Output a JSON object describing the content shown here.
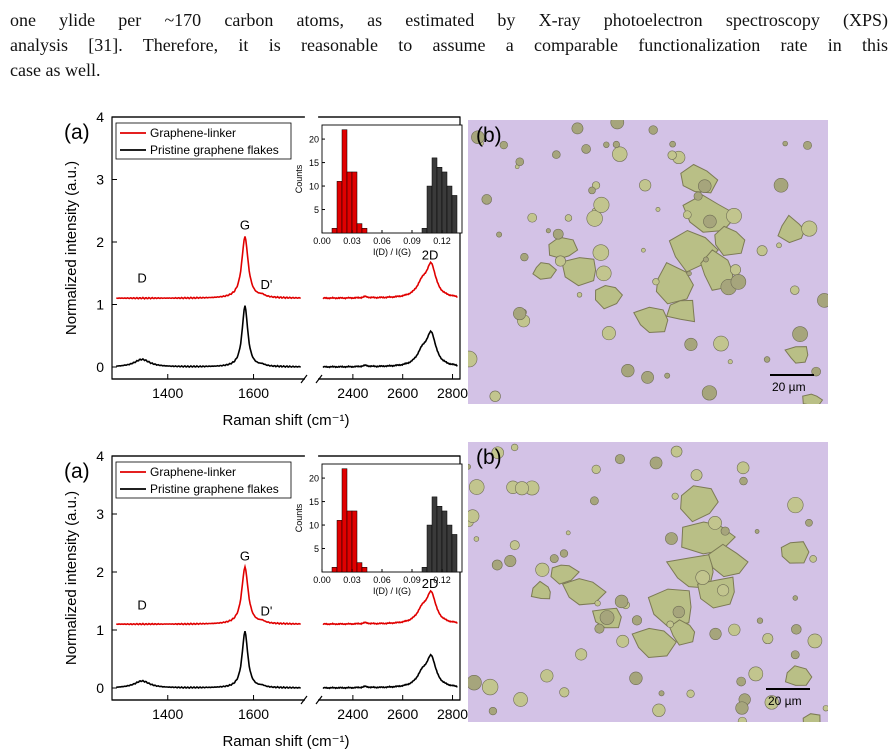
{
  "paragraph": {
    "lines": [
      "one ylide per ~170 carbon atoms, as estimated by X-ray photoelectron spectroscopy (XPS)",
      "analysis [31]. Therefore, it is reasonable to assume a comparable functionalization rate in this",
      "case as well."
    ]
  },
  "figures": [
    {
      "panel_a_label": "(a)",
      "panel_b_label": "(b)",
      "ylabel": "Normalized intensity (a.u.)",
      "xlabel": "Raman shift (cm⁻¹)",
      "legend": [
        "Graphene-linker",
        "Pristine graphene flakes"
      ],
      "peak_labels": {
        "D": "D",
        "G": "G",
        "Dp": "D'",
        "2D": "2D"
      },
      "yticks": [
        "0",
        "1",
        "2",
        "3",
        "4"
      ],
      "xticks_left": [
        "1400",
        "1600"
      ],
      "xticks_right": [
        "2400",
        "2600",
        "2800"
      ],
      "inset": {
        "ylabel": "Counts",
        "xlabel": "I(D) / I(G)",
        "yticks": [
          "5",
          "10",
          "15",
          "20"
        ],
        "xticks": [
          "0.00",
          "0.03",
          "0.06",
          "0.09",
          "0.12"
        ]
      },
      "scalebar": "20 µm"
    },
    {
      "panel_a_label": "(a)",
      "panel_b_label": "(b)",
      "ylabel": "Normalized intensity (a.u.)",
      "xlabel": "Raman shift (cm⁻¹)",
      "legend": [
        "Graphene-linker",
        "Pristine graphene flakes"
      ],
      "peak_labels": {
        "D": "D",
        "G": "G",
        "Dp": "D'",
        "2D": "2D"
      },
      "yticks": [
        "0",
        "1",
        "2",
        "3",
        "4"
      ],
      "xticks_left": [
        "1400",
        "1600"
      ],
      "xticks_right": [
        "2400",
        "2600",
        "2800"
      ],
      "inset": {
        "ylabel": "Counts",
        "xlabel": "I(D) / I(G)",
        "yticks": [
          "5",
          "10",
          "15",
          "20"
        ],
        "xticks": [
          "0.00",
          "0.03",
          "0.06",
          "0.09",
          "0.12"
        ]
      },
      "scalebar": "20 µm"
    }
  ],
  "chart_data": {
    "type": "line",
    "xlabel": "Raman shift (cm⁻¹)",
    "ylabel": "Normalized intensity (a.u.)",
    "ylim": [
      0,
      4
    ],
    "x_axis_break": [
      1700,
      2300
    ],
    "series": [
      {
        "name": "Graphene-linker",
        "color": "#e00000",
        "offset": 1.1,
        "peaks": {
          "D": [
            1340,
            0.0
          ],
          "G": [
            1580,
            1.0
          ],
          "D'": [
            1620,
            0.0
          ],
          "2D": [
            2700,
            0.47
          ]
        }
      },
      {
        "name": "Pristine graphene flakes",
        "color": "#000000",
        "offset": 0.0,
        "peaks": {
          "D": [
            1340,
            0.12
          ],
          "G": [
            1580,
            1.0
          ],
          "2D": [
            2700,
            0.47
          ]
        }
      }
    ],
    "inset_histograms": [
      {
        "series": "Graphene-linker",
        "color": "#e00000",
        "bin_width": 0.005,
        "bins": [
          0.0125,
          0.0175,
          0.0225,
          0.0275,
          0.0325,
          0.0375,
          0.0425
        ],
        "counts": [
          1,
          11,
          22,
          13,
          13,
          2,
          1
        ]
      },
      {
        "series": "Pristine graphene flakes",
        "color": "#3a3a3a",
        "bin_width": 0.005,
        "bins": [
          0.1025,
          0.1075,
          0.1125,
          0.1175,
          0.1225,
          0.1275,
          0.1325
        ],
        "counts": [
          1,
          10,
          16,
          14,
          13,
          10,
          8
        ]
      }
    ]
  },
  "colors": {
    "linker": "#e00000",
    "pristine": "#000000",
    "photo_bg": "#d6c3e6"
  }
}
